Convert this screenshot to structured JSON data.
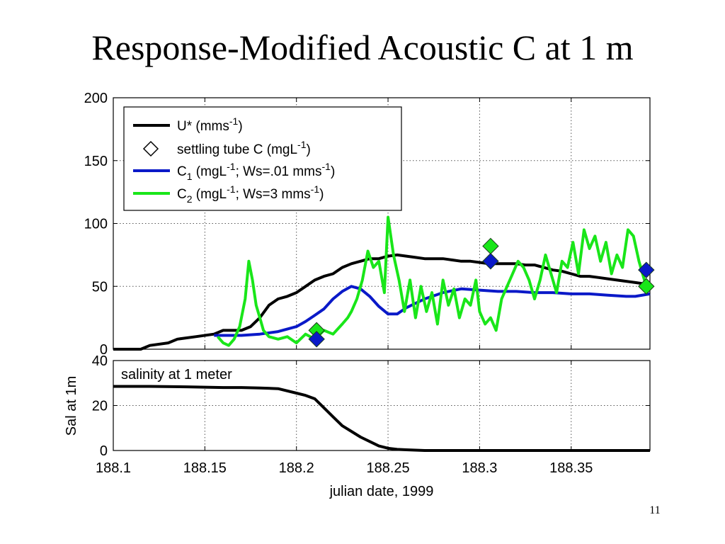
{
  "slide": {
    "title": "Response-Modified Acoustic C at 1 m",
    "page_number": "11"
  },
  "chart_data": [
    {
      "type": "line",
      "xlim": [
        188.1,
        188.393
      ],
      "ylim": [
        0,
        200
      ],
      "yticks": [
        "0",
        "50",
        "100",
        "150",
        "200"
      ],
      "grid": true,
      "legend_position": "top-left",
      "legend": [
        {
          "key": "ustar",
          "label": "U* (mms-1)",
          "color": "#000000",
          "marker": "line"
        },
        {
          "key": "tube",
          "label": "settling tube C (mgL-1)",
          "color": "#000000",
          "marker": "diamond-open"
        },
        {
          "key": "c1",
          "label": "C1 (mgL-1; Ws=.01 mms-1)",
          "color": "#0a19c8",
          "marker": "line"
        },
        {
          "key": "c2",
          "label": "C2 (mgL-1; Ws=3 mms-1)",
          "color": "#19e619",
          "marker": "line"
        }
      ],
      "series": [
        {
          "key": "ustar",
          "name": "U* (mms-1)",
          "color": "#000000",
          "x": [
            188.1,
            188.115,
            188.12,
            188.13,
            188.135,
            188.145,
            188.155,
            188.16,
            188.17,
            188.175,
            188.18,
            188.185,
            188.19,
            188.195,
            188.2,
            188.205,
            188.21,
            188.215,
            188.22,
            188.225,
            188.23,
            188.235,
            188.24,
            188.245,
            188.25,
            188.255,
            188.26,
            188.265,
            188.27,
            188.275,
            188.28,
            188.285,
            188.29,
            188.295,
            188.3,
            188.305,
            188.31,
            188.315,
            188.32,
            188.325,
            188.33,
            188.335,
            188.34,
            188.345,
            188.35,
            188.355,
            188.36,
            188.365,
            188.37,
            188.375,
            188.38,
            188.385,
            188.39,
            188.393
          ],
          "y": [
            0,
            0,
            3,
            5,
            8,
            10,
            12,
            15,
            15,
            18,
            25,
            35,
            40,
            42,
            45,
            50,
            55,
            58,
            60,
            65,
            68,
            70,
            72,
            72,
            74,
            75,
            74,
            73,
            72,
            72,
            72,
            71,
            70,
            70,
            69,
            68,
            68,
            68,
            68,
            67,
            67,
            65,
            63,
            62,
            60,
            58,
            58,
            57,
            56,
            55,
            54,
            53,
            52,
            52
          ]
        },
        {
          "key": "c1",
          "name": "C1 (mgL-1; Ws=.01 mms-1)",
          "color": "#0a19c8",
          "x": [
            188.155,
            188.17,
            188.18,
            188.19,
            188.2,
            188.205,
            188.21,
            188.215,
            188.22,
            188.225,
            188.23,
            188.235,
            188.24,
            188.245,
            188.25,
            188.255,
            188.26,
            188.27,
            188.28,
            188.29,
            188.3,
            188.31,
            188.32,
            188.33,
            188.34,
            188.35,
            188.36,
            188.37,
            188.38,
            188.385,
            188.393
          ],
          "y": [
            11,
            11,
            12,
            14,
            18,
            22,
            27,
            32,
            40,
            46,
            50,
            48,
            42,
            34,
            28,
            28,
            33,
            40,
            45,
            48,
            47,
            46,
            46,
            45,
            45,
            44,
            44,
            43,
            42,
            42,
            44
          ]
        },
        {
          "key": "c2",
          "name": "C2 (mgL-1; Ws=3 mms-1)",
          "color": "#19e619",
          "x": [
            188.157,
            188.16,
            188.163,
            188.166,
            188.169,
            188.172,
            188.174,
            188.176,
            188.178,
            188.18,
            188.182,
            188.185,
            188.19,
            188.195,
            188.2,
            188.205,
            188.21,
            188.215,
            188.22,
            188.225,
            188.228,
            188.23,
            188.233,
            188.236,
            188.239,
            188.242,
            188.245,
            188.248,
            188.25,
            188.253,
            188.256,
            188.259,
            188.262,
            188.265,
            188.268,
            188.271,
            188.274,
            188.277,
            188.28,
            188.283,
            188.286,
            188.289,
            188.292,
            188.295,
            188.298,
            188.3,
            188.303,
            188.306,
            188.309,
            188.312,
            188.315,
            188.318,
            188.321,
            188.324,
            188.327,
            188.33,
            188.333,
            188.336,
            188.339,
            188.342,
            188.345,
            188.348,
            188.351,
            188.354,
            188.357,
            188.36,
            188.363,
            188.366,
            188.369,
            188.372,
            188.375,
            188.378,
            188.381,
            188.384,
            188.387,
            188.39,
            188.393
          ],
          "y": [
            10,
            5,
            3,
            8,
            18,
            40,
            70,
            55,
            35,
            25,
            15,
            10,
            8,
            10,
            5,
            12,
            8,
            15,
            12,
            20,
            25,
            30,
            40,
            55,
            78,
            65,
            70,
            45,
            105,
            75,
            55,
            30,
            55,
            25,
            50,
            30,
            45,
            20,
            55,
            35,
            48,
            25,
            40,
            35,
            55,
            30,
            20,
            25,
            15,
            40,
            50,
            60,
            70,
            65,
            55,
            40,
            55,
            75,
            60,
            45,
            70,
            65,
            85,
            60,
            95,
            80,
            90,
            70,
            85,
            60,
            75,
            65,
            95,
            90,
            70,
            55,
            50
          ]
        }
      ],
      "markers": [
        {
          "series": "c2",
          "color": "#19e619",
          "points": [
            [
              188.211,
              15
            ],
            [
              188.306,
              82
            ],
            [
              188.391,
              50
            ]
          ]
        },
        {
          "series": "c1",
          "color": "#0a19c8",
          "points": [
            [
              188.211,
              8
            ],
            [
              188.306,
              70
            ],
            [
              188.391,
              63
            ]
          ]
        }
      ]
    },
    {
      "type": "line",
      "xlim": [
        188.1,
        188.393
      ],
      "ylim": [
        0,
        40
      ],
      "xticks": [
        "188.1",
        "188.15",
        "188.2",
        "188.25",
        "188.3",
        "188.35"
      ],
      "yticks": [
        "0",
        "20",
        "40"
      ],
      "xlabel": "julian date, 1999",
      "ylabel": "Sal at 1m",
      "annotation": "salinity at 1 meter",
      "grid": true,
      "series": [
        {
          "key": "salinity",
          "color": "#000000",
          "x": [
            188.1,
            188.12,
            188.14,
            188.16,
            188.17,
            188.18,
            188.19,
            188.2,
            188.205,
            188.21,
            188.215,
            188.22,
            188.225,
            188.23,
            188.235,
            188.24,
            188.245,
            188.25,
            188.255,
            188.26,
            188.27,
            188.28,
            188.3,
            188.393
          ],
          "y": [
            28.5,
            28.5,
            28.3,
            28,
            28,
            27.8,
            27.5,
            25.5,
            24.5,
            23,
            19,
            15,
            11,
            8.5,
            6,
            4,
            2,
            1,
            0.5,
            0.3,
            0,
            0,
            0,
            0
          ]
        }
      ]
    }
  ]
}
